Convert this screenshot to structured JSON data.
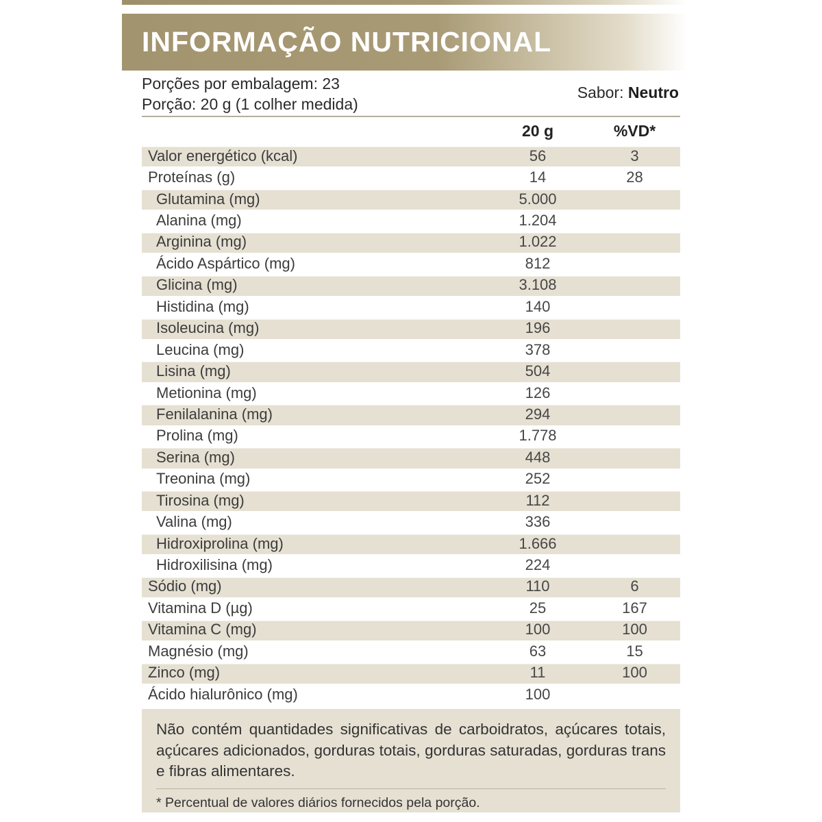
{
  "header": {
    "title": "INFORMAÇÃO NUTRICIONAL",
    "servings_line": "Porções por embalagem: 23",
    "serving_line": "Porção: 20 g (1 colher medida)",
    "flavor_label": "Sabor:",
    "flavor_value": "Neutro"
  },
  "table": {
    "columns": [
      "20 g",
      "%VD*"
    ],
    "rows": [
      {
        "label": "Valor energético (kcal)",
        "amount": "56",
        "vd": "3",
        "indent": false
      },
      {
        "label": "Proteínas (g)",
        "amount": "14",
        "vd": "28",
        "indent": false
      },
      {
        "label": "Glutamina (mg)",
        "amount": "5.000",
        "vd": "",
        "indent": true
      },
      {
        "label": "Alanina (mg)",
        "amount": "1.204",
        "vd": "",
        "indent": true
      },
      {
        "label": "Arginina (mg)",
        "amount": "1.022",
        "vd": "",
        "indent": true
      },
      {
        "label": "Ácido Aspártico (mg)",
        "amount": "812",
        "vd": "",
        "indent": true
      },
      {
        "label": "Glicina (mg)",
        "amount": "3.108",
        "vd": "",
        "indent": true
      },
      {
        "label": "Histidina (mg)",
        "amount": "140",
        "vd": "",
        "indent": true
      },
      {
        "label": "Isoleucina (mg)",
        "amount": "196",
        "vd": "",
        "indent": true
      },
      {
        "label": "Leucina (mg)",
        "amount": "378",
        "vd": "",
        "indent": true
      },
      {
        "label": "Lisina (mg)",
        "amount": "504",
        "vd": "",
        "indent": true
      },
      {
        "label": "Metionina (mg)",
        "amount": "126",
        "vd": "",
        "indent": true
      },
      {
        "label": "Fenilalanina (mg)",
        "amount": "294",
        "vd": "",
        "indent": true
      },
      {
        "label": "Prolina (mg)",
        "amount": "1.778",
        "vd": "",
        "indent": true
      },
      {
        "label": "Serina (mg)",
        "amount": "448",
        "vd": "",
        "indent": true
      },
      {
        "label": "Treonina (mg)",
        "amount": "252",
        "vd": "",
        "indent": true
      },
      {
        "label": "Tirosina (mg)",
        "amount": "112",
        "vd": "",
        "indent": true
      },
      {
        "label": "Valina (mg)",
        "amount": "336",
        "vd": "",
        "indent": true
      },
      {
        "label": "Hidroxiprolina (mg)",
        "amount": "1.666",
        "vd": "",
        "indent": true
      },
      {
        "label": "Hidroxilisina (mg)",
        "amount": "224",
        "vd": "",
        "indent": true
      },
      {
        "label": "Sódio (mg)",
        "amount": "110",
        "vd": "6",
        "indent": false
      },
      {
        "label": "Vitamina D (µg)",
        "amount": "25",
        "vd": "167",
        "indent": false
      },
      {
        "label": "Vitamina C (mg)",
        "amount": "100",
        "vd": "100",
        "indent": false
      },
      {
        "label": "Magnésio (mg)",
        "amount": "63",
        "vd": "15",
        "indent": false
      },
      {
        "label": "Zinco (mg)",
        "amount": "11",
        "vd": "100",
        "indent": false
      },
      {
        "label": "Ácido hialurônico (mg)",
        "amount": "100",
        "vd": "",
        "indent": false
      }
    ]
  },
  "footer": {
    "note": "Não contém quantidades significativas de carboidratos, açúcares totais, açúcares adicionados, gorduras totais, gorduras saturadas, gorduras trans e fibras alimentares.",
    "footnote": "* Percentual de valores diários fornecidos pela porção."
  },
  "colors": {
    "band_gold": "#a89a74",
    "row_shade": "#e5e0d2",
    "rule": "#b6ae9d",
    "text": "#3c3c3c"
  }
}
